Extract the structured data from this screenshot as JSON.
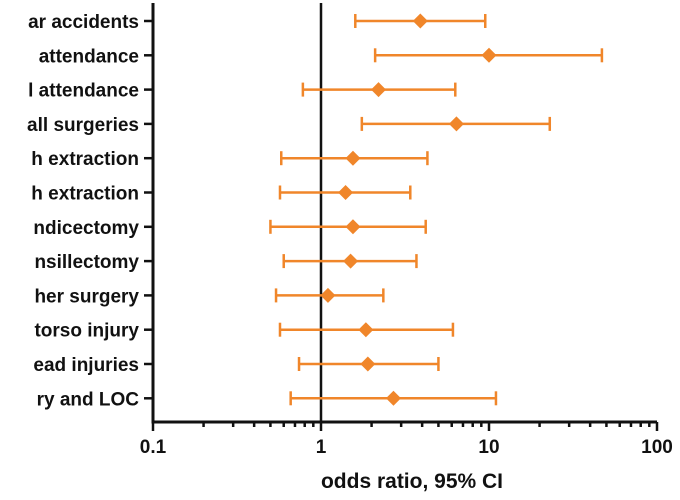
{
  "chart_data": {
    "type": "forest",
    "categories": [
      "ar accidents",
      "attendance",
      "l attendance",
      "all surgeries",
      "h extraction",
      "h extraction",
      "ndicectomy",
      "nsillectomy",
      "her surgery",
      "torso injury",
      "ead injuries",
      "ry and LOC"
    ],
    "estimates": [
      3.9,
      10.0,
      2.2,
      6.4,
      1.55,
      1.4,
      1.55,
      1.5,
      1.1,
      1.85,
      1.9,
      2.7
    ],
    "ci_low": [
      1.6,
      2.1,
      0.78,
      1.75,
      0.58,
      0.57,
      0.5,
      0.6,
      0.54,
      0.57,
      0.74,
      0.66
    ],
    "ci_high": [
      9.5,
      47.0,
      6.3,
      23.0,
      4.3,
      3.4,
      4.2,
      3.7,
      2.35,
      6.1,
      5.0,
      11.0
    ],
    "reference_line": 1,
    "xlabel": "odds ratio, 95% CI",
    "xscale": "log",
    "xlim": [
      0.1,
      100
    ],
    "xticks": [
      0.1,
      1,
      10,
      100
    ],
    "xtick_labels": [
      "0.1",
      "1",
      "10",
      "100"
    ],
    "grid": false,
    "marker": "diamond",
    "color": "#f0862a"
  }
}
